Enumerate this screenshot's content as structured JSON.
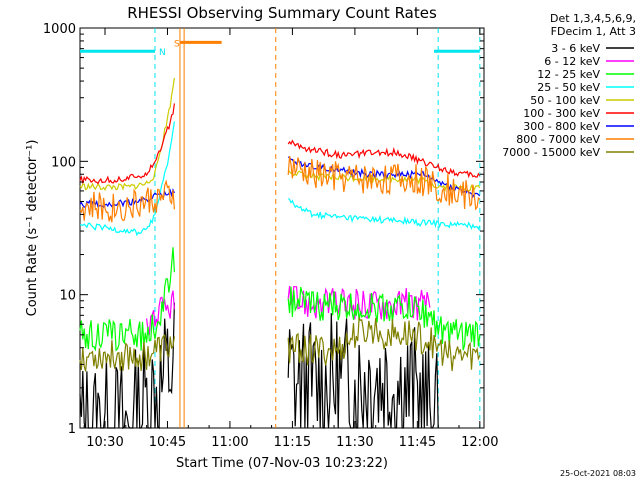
{
  "chart_data": {
    "type": "line",
    "title": "RHESSI Observing Summary Count Rates",
    "xlabel": "Start Time (07-Nov-03 10:23:22)",
    "ylabel": "Count Rate (s⁻¹ detector⁻¹)",
    "yscale": "log",
    "ylim": [
      1,
      1000
    ],
    "xlim_minutes_after_10_00": [
      24,
      121
    ],
    "x_tick_labels": [
      "10:30",
      "10:45",
      "11:00",
      "11:15",
      "11:30",
      "11:45",
      "12:00"
    ],
    "x_tick_minutes": [
      30,
      45,
      60,
      75,
      90,
      105,
      120
    ],
    "y_tick_labels": [
      "1",
      "10",
      "100",
      "1000"
    ],
    "y_tick_values": [
      1,
      10,
      100,
      1000
    ],
    "legend_header": [
      "Det 1,3,4,5,6,9,",
      "FDecim 1, Att 3"
    ],
    "legend_position": "right",
    "grid": false,
    "bands": [
      {
        "label": "N",
        "color": "#00e5ee",
        "level": 670,
        "segments": [
          [
            24,
            42
          ],
          [
            109,
            120
          ]
        ]
      },
      {
        "label": "S",
        "color": "#ff7f00",
        "level": 780,
        "segments": [
          [
            48,
            58
          ]
        ]
      }
    ],
    "vertical_markers": [
      {
        "x": 42,
        "color": "#00e5ee",
        "style": "dashed"
      },
      {
        "x": 110,
        "color": "#00e5ee",
        "style": "dashed"
      },
      {
        "x": 120,
        "color": "#00e5ee",
        "style": "dashed"
      },
      {
        "x": 48,
        "color": "#ff7f00",
        "style": "solid"
      },
      {
        "x": 49,
        "color": "#ff7f00",
        "style": "solid"
      },
      {
        "x": 71,
        "color": "#ff7f00",
        "style": "dashed"
      }
    ],
    "gap_minutes": [
      47.5,
      73
    ],
    "series": [
      {
        "name": "3 - 6 keV",
        "color": "#000000",
        "x": [
          24,
          28,
          32,
          36,
          40,
          44,
          46,
          47,
          74,
          78,
          82,
          86,
          90,
          94,
          98,
          102,
          106,
          110
        ],
        "y": [
          1,
          1,
          1,
          1,
          1.6,
          2.2,
          3,
          3.5,
          2.5,
          2,
          2,
          2.2,
          2,
          2.5,
          2.2,
          2,
          1.6,
          1
        ]
      },
      {
        "name": "6 - 12 keV",
        "color": "#ff00ff",
        "x": [
          40,
          42,
          44,
          46,
          47,
          74,
          80,
          86,
          92,
          98,
          104,
          108
        ],
        "y": [
          6,
          7,
          7.5,
          8.5,
          9,
          9,
          8.5,
          8.5,
          8.5,
          8.5,
          8.5,
          8
        ]
      },
      {
        "name": "12 - 25 keV",
        "color": "#00ff00",
        "x": [
          24,
          30,
          36,
          40,
          42,
          44,
          45,
          46,
          47,
          74,
          80,
          86,
          92,
          98,
          104,
          108,
          112,
          116,
          120
        ],
        "y": [
          5,
          5,
          5,
          5,
          6,
          8,
          12,
          16,
          20,
          9,
          8.5,
          8,
          8,
          8,
          8,
          7,
          5,
          5,
          5
        ]
      },
      {
        "name": "25 - 50 keV",
        "color": "#00ffff",
        "x": [
          24,
          28,
          32,
          36,
          38,
          40,
          42,
          44,
          46,
          47,
          74,
          76,
          80,
          86,
          92,
          98,
          104,
          110,
          116,
          120
        ],
        "y": [
          33,
          32,
          31,
          30,
          29,
          31,
          40,
          70,
          140,
          230,
          55,
          45,
          40,
          38,
          37,
          36,
          35,
          34,
          33,
          33
        ]
      },
      {
        "name": "50 - 100 keV",
        "color": "#cccc00",
        "x": [
          24,
          28,
          32,
          36,
          40,
          42,
          44,
          46,
          47,
          74,
          78,
          84,
          90,
          96,
          100,
          106,
          110,
          116,
          120
        ],
        "y": [
          65,
          64,
          64,
          64,
          68,
          80,
          150,
          300,
          520,
          85,
          78,
          76,
          75,
          74,
          74,
          72,
          65,
          63,
          63
        ]
      },
      {
        "name": "100 - 300 keV",
        "color": "#ff0000",
        "x": [
          24,
          28,
          32,
          36,
          40,
          42,
          44,
          46,
          47,
          74,
          78,
          84,
          88,
          92,
          96,
          100,
          104,
          110,
          116,
          120
        ],
        "y": [
          72,
          72,
          72,
          75,
          82,
          100,
          140,
          210,
          290,
          140,
          125,
          115,
          110,
          115,
          115,
          118,
          105,
          90,
          80,
          78
        ]
      },
      {
        "name": "300 - 800 keV",
        "color": "#0000ff",
        "x": [
          24,
          28,
          32,
          36,
          40,
          42,
          44,
          46,
          47,
          74,
          78,
          84,
          90,
          96,
          100,
          106,
          110,
          116,
          120
        ],
        "y": [
          48,
          48,
          48,
          49,
          52,
          55,
          56,
          58,
          58,
          105,
          95,
          88,
          82,
          80,
          80,
          80,
          70,
          60,
          55
        ]
      },
      {
        "name": "800 - 7000 keV",
        "color": "#ff7f00",
        "x": [
          24,
          28,
          32,
          36,
          40,
          42,
          44,
          46,
          47,
          74,
          78,
          84,
          90,
          96,
          100,
          106,
          110,
          116,
          120
        ],
        "y": [
          45,
          45,
          45,
          46,
          50,
          52,
          53,
          55,
          55,
          90,
          82,
          78,
          75,
          74,
          74,
          72,
          65,
          57,
          52
        ]
      },
      {
        "name": "7000 - 15000 keV",
        "color": "#808000",
        "x": [
          24,
          28,
          32,
          36,
          40,
          42,
          44,
          46,
          47,
          74,
          80,
          86,
          90,
          94,
          98,
          104,
          108,
          112,
          116,
          120
        ],
        "y": [
          3.5,
          3.5,
          3.5,
          3.5,
          3.5,
          3.8,
          4,
          4.2,
          4.5,
          4,
          3.8,
          3.8,
          5,
          5.5,
          5,
          5,
          4.5,
          3.5,
          3.5,
          3.5
        ]
      }
    ],
    "footer_timestamp": "25-Oct-2021 08:03"
  }
}
